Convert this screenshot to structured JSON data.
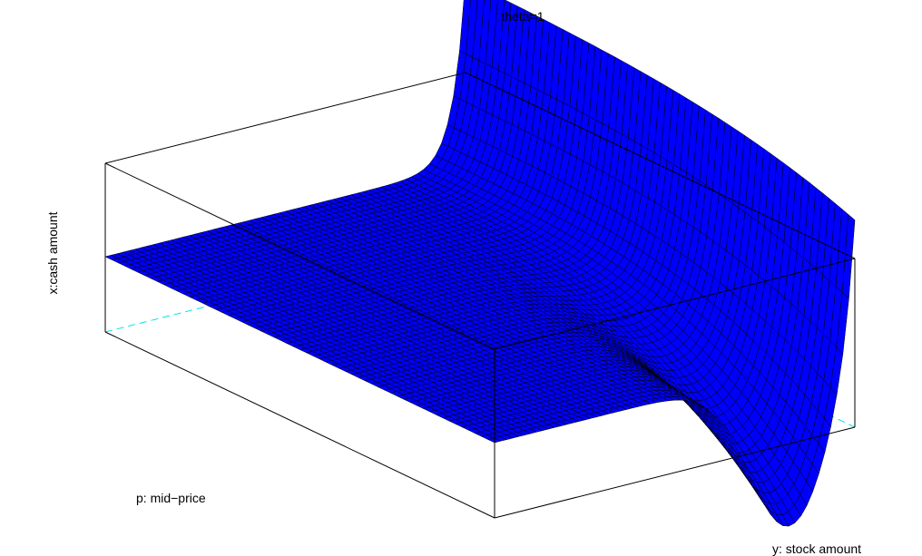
{
  "chart_data": {
    "type": "surface",
    "title": "theta=1",
    "xlabel": "p: mid−price",
    "ylabel": "y: stock amount",
    "zlabel": "x:cash amount",
    "colors": {
      "surface": "#0000ff",
      "mesh": "#000000",
      "hidden_axes": "#00e5e5",
      "box": "#000000"
    },
    "grid": true,
    "tick_labels": false,
    "description_shape": "flat plane at mid level that rises to a vertical wall at the back edge and dips into a trough near the front-right corner"
  }
}
